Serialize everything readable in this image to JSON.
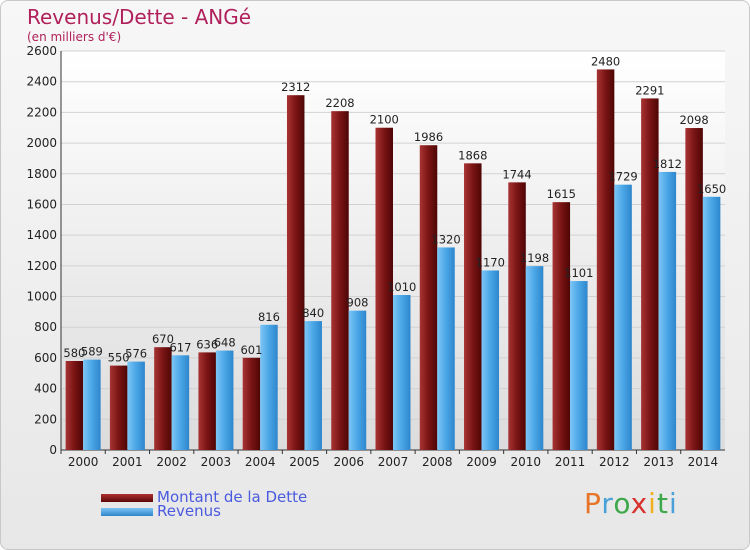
{
  "header": {
    "title": "Revenus/Dette - ANGé",
    "subtitle": "(en milliers d'€)"
  },
  "legend": {
    "debt_label": "Montant de la Dette",
    "revenue_label": "Revenus"
  },
  "logo": {
    "text": "Proxiti"
  },
  "colors": {
    "debt": "#7a1414",
    "revenue": "#4aa6e6",
    "text": "#b0205a",
    "legend_text": "#4a5adf"
  },
  "chart_data": {
    "type": "bar",
    "title": "Revenus/Dette - ANGé",
    "subtitle": "(en milliers d'€)",
    "categories": [
      "2000",
      "2001",
      "2002",
      "2003",
      "2004",
      "2005",
      "2006",
      "2007",
      "2008",
      "2009",
      "2010",
      "2011",
      "2012",
      "2013",
      "2014"
    ],
    "series": [
      {
        "name": "Montant de la Dette",
        "values": [
          580,
          550,
          670,
          636,
          601,
          2312,
          2208,
          2100,
          1986,
          1868,
          1744,
          1615,
          2480,
          2291,
          2098
        ]
      },
      {
        "name": "Revenus",
        "values": [
          589,
          576,
          617,
          648,
          816,
          840,
          908,
          1010,
          1320,
          1170,
          1198,
          1101,
          1729,
          1812,
          1650
        ]
      }
    ],
    "ylim": [
      0,
      2600
    ],
    "yticks": [
      0,
      200,
      400,
      600,
      800,
      1000,
      1200,
      1400,
      1600,
      1800,
      2000,
      2200,
      2400,
      2600
    ],
    "grid": true,
    "legend_position": "bottom-left"
  }
}
